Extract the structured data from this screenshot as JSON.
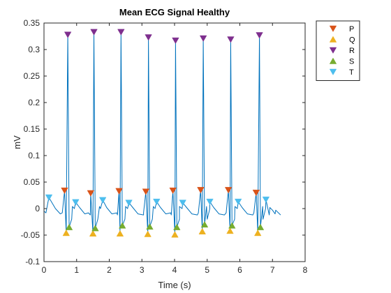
{
  "chart_data": {
    "type": "line",
    "title": "Mean ECG Signal Healthy",
    "xlabel": "Time (s)",
    "ylabel": "mV",
    "xlim": [
      0,
      8
    ],
    "ylim": [
      -0.1,
      0.35
    ],
    "xticks": [
      0,
      1,
      2,
      3,
      4,
      5,
      6,
      7,
      8
    ],
    "xtick_labels": [
      "0",
      "1",
      "2",
      "3",
      "4",
      "5",
      "6",
      "7",
      "8"
    ],
    "yticks": [
      -0.1,
      -0.05,
      0,
      0.05,
      0.1,
      0.15,
      0.2,
      0.25,
      0.3,
      0.35
    ],
    "ytick_labels": [
      "-0.1",
      "-0.05",
      "0",
      "0.05",
      "0.1",
      "0.15",
      "0.2",
      "0.25",
      "0.3",
      "0.35"
    ],
    "grid": false,
    "box": true,
    "legend_position": "outside top-right",
    "signal": {
      "color": "#0072BD",
      "x_range": [
        0,
        7.1
      ]
    },
    "series": [
      {
        "name": "P",
        "marker": "triangle-down",
        "color": "#D95319",
        "x": [
          0.63,
          1.43,
          2.3,
          3.12,
          3.95,
          4.8,
          5.65,
          6.5
        ],
        "y": [
          0.034,
          0.029,
          0.033,
          0.032,
          0.034,
          0.035,
          0.035,
          0.03
        ]
      },
      {
        "name": "Q",
        "marker": "triangle-up",
        "color": "#EDB120",
        "x": [
          0.68,
          1.5,
          2.33,
          3.18,
          4.01,
          4.85,
          5.7,
          6.55
        ],
        "y": [
          -0.046,
          -0.047,
          -0.047,
          -0.048,
          -0.049,
          -0.043,
          -0.042,
          -0.046
        ]
      },
      {
        "name": "R",
        "marker": "triangle-down",
        "color": "#7E2F8E",
        "x": [
          0.73,
          1.53,
          2.36,
          3.2,
          4.03,
          4.88,
          5.72,
          6.6
        ],
        "y": [
          0.328,
          0.333,
          0.333,
          0.323,
          0.317,
          0.321,
          0.319,
          0.327
        ]
      },
      {
        "name": "S",
        "marker": "triangle-up",
        "color": "#77AC30",
        "x": [
          0.77,
          1.57,
          2.4,
          3.24,
          4.07,
          4.92,
          5.76,
          6.63
        ],
        "y": [
          -0.035,
          -0.037,
          -0.032,
          -0.034,
          -0.035,
          -0.03,
          -0.032,
          -0.035
        ]
      },
      {
        "name": "T",
        "marker": "triangle-down",
        "color": "#4DBEEE",
        "x": [
          0.15,
          0.97,
          1.8,
          2.6,
          3.45,
          4.25,
          5.08,
          5.95,
          6.8
        ],
        "y": [
          0.021,
          0.012,
          0.016,
          0.011,
          0.013,
          0.011,
          0.013,
          0.013,
          0.017
        ]
      }
    ]
  }
}
